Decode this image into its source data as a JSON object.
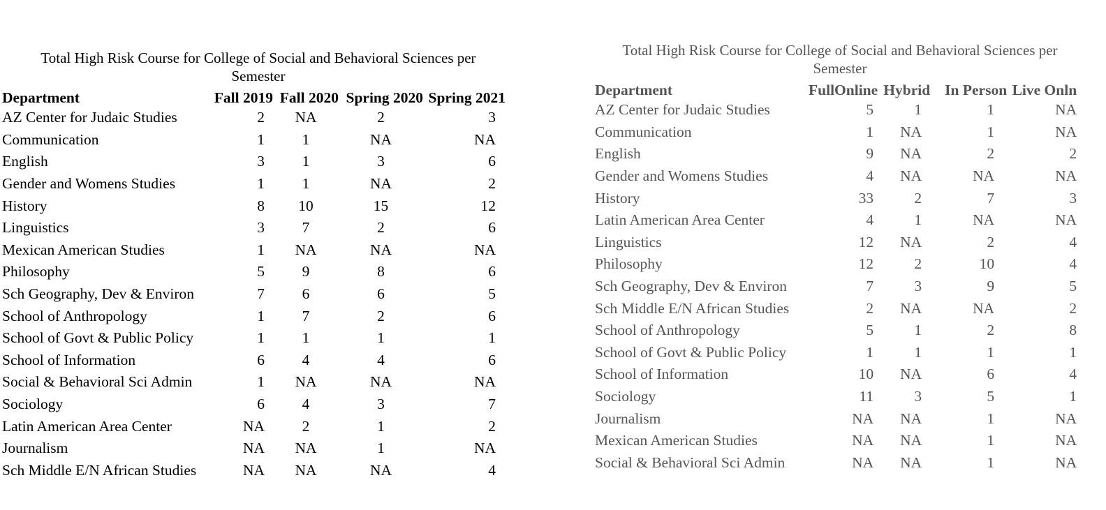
{
  "left_table": {
    "caption": "Total High Risk Course for College of Social and Behavioral Sciences per Semester",
    "headers": [
      "Department",
      "Fall 2019",
      "Fall 2020",
      "Spring 2020",
      "Spring 2021"
    ],
    "rows": [
      [
        "AZ Center for Judaic Studies",
        "2",
        "NA",
        "2",
        "3"
      ],
      [
        "Communication",
        "1",
        "1",
        "NA",
        "NA"
      ],
      [
        "English",
        "3",
        "1",
        "3",
        "6"
      ],
      [
        "Gender and Womens Studies",
        "1",
        "1",
        "NA",
        "2"
      ],
      [
        "History",
        "8",
        "10",
        "15",
        "12"
      ],
      [
        "Linguistics",
        "3",
        "7",
        "2",
        "6"
      ],
      [
        "Mexican American Studies",
        "1",
        "NA",
        "NA",
        "NA"
      ],
      [
        "Philosophy",
        "5",
        "9",
        "8",
        "6"
      ],
      [
        "Sch Geography, Dev & Environ",
        "7",
        "6",
        "6",
        "5"
      ],
      [
        "School of Anthropology",
        "1",
        "7",
        "2",
        "6"
      ],
      [
        "School of Govt & Public Policy",
        "1",
        "1",
        "1",
        "1"
      ],
      [
        "School of Information",
        "6",
        "4",
        "4",
        "6"
      ],
      [
        "Social & Behavioral Sci Admin",
        "1",
        "NA",
        "NA",
        "NA"
      ],
      [
        "Sociology",
        "6",
        "4",
        "3",
        "7"
      ],
      [
        "Latin American Area Center",
        "NA",
        "2",
        "1",
        "2"
      ],
      [
        "Journalism",
        "NA",
        "NA",
        "1",
        "NA"
      ],
      [
        "Sch Middle E/N African Studies",
        "NA",
        "NA",
        "NA",
        "4"
      ]
    ]
  },
  "right_table": {
    "caption": "Total High Risk Course for College of Social and Behavioral Sciences per Semester",
    "headers": [
      "Department",
      "FullOnline",
      "Hybrid",
      "In Person",
      "Live Onln"
    ],
    "rows": [
      [
        "AZ Center for Judaic Studies",
        "5",
        "1",
        "1",
        "NA"
      ],
      [
        "Communication",
        "1",
        "NA",
        "1",
        "NA"
      ],
      [
        "English",
        "9",
        "NA",
        "2",
        "2"
      ],
      [
        "Gender and Womens Studies",
        "4",
        "NA",
        "NA",
        "NA"
      ],
      [
        "History",
        "33",
        "2",
        "7",
        "3"
      ],
      [
        "Latin American Area Center",
        "4",
        "1",
        "NA",
        "NA"
      ],
      [
        "Linguistics",
        "12",
        "NA",
        "2",
        "4"
      ],
      [
        "Philosophy",
        "12",
        "2",
        "10",
        "4"
      ],
      [
        "Sch Geography, Dev & Environ",
        "7",
        "3",
        "9",
        "5"
      ],
      [
        "Sch Middle E/N African Studies",
        "2",
        "NA",
        "NA",
        "2"
      ],
      [
        "School of Anthropology",
        "5",
        "1",
        "2",
        "8"
      ],
      [
        "School of Govt & Public Policy",
        "1",
        "1",
        "1",
        "1"
      ],
      [
        "School of Information",
        "10",
        "NA",
        "6",
        "4"
      ],
      [
        "Sociology",
        "11",
        "3",
        "5",
        "1"
      ],
      [
        "Journalism",
        "NA",
        "NA",
        "1",
        "NA"
      ],
      [
        "Mexican American Studies",
        "NA",
        "NA",
        "1",
        "NA"
      ],
      [
        "Social & Behavioral Sci Admin",
        "NA",
        "NA",
        "1",
        "NA"
      ]
    ]
  },
  "colors": {
    "left_text": "#000000",
    "right_text": "#555555",
    "background": "#ffffff"
  }
}
